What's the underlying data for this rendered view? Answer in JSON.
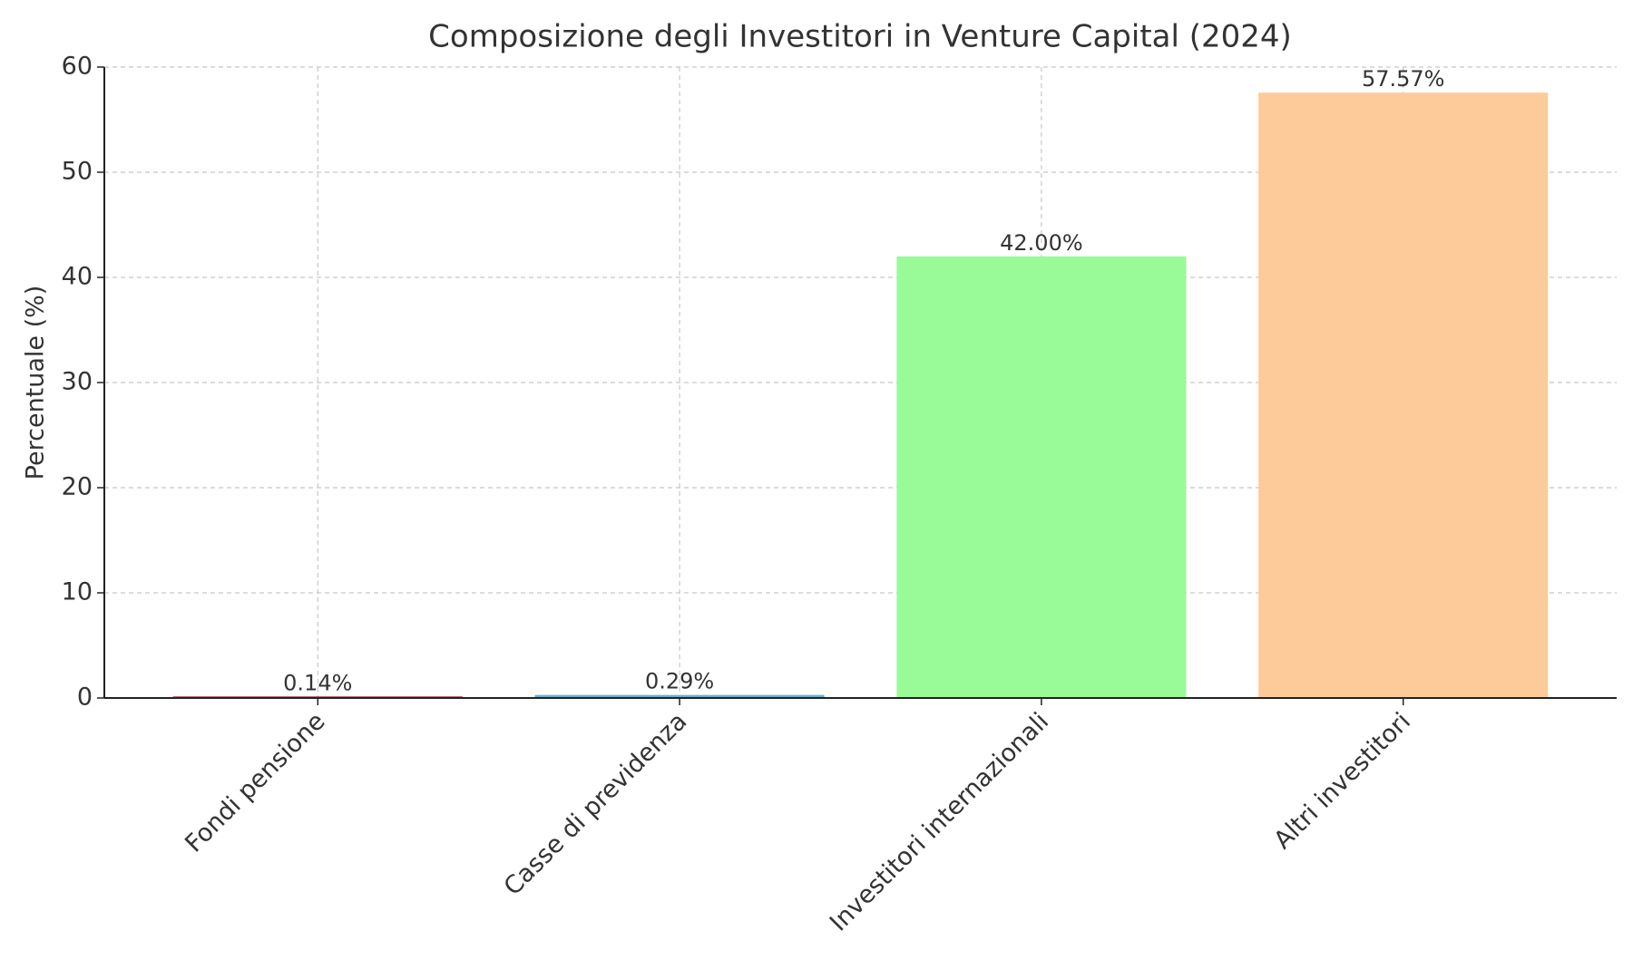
{
  "chart_data": {
    "type": "bar",
    "title": "Composizione degli Investitori in Venture Capital (2024)",
    "y_label": "Percentuale (%)",
    "categories": [
      "Fondi pensione",
      "Casse di previdenza",
      "Investitori internazionali",
      "Altri investitori"
    ],
    "values": [
      0.14,
      0.29,
      42.0,
      57.57
    ],
    "value_labels": [
      "0.14%",
      "0.29%",
      "42.00%",
      "57.57%"
    ],
    "colors": [
      "#8b1a1a",
      "#6baed6",
      "#98fb98",
      "#fdcb99"
    ],
    "ylim": [
      0,
      60
    ],
    "yticks": [
      0,
      10,
      20,
      30,
      40,
      50,
      60
    ],
    "grid": true
  }
}
